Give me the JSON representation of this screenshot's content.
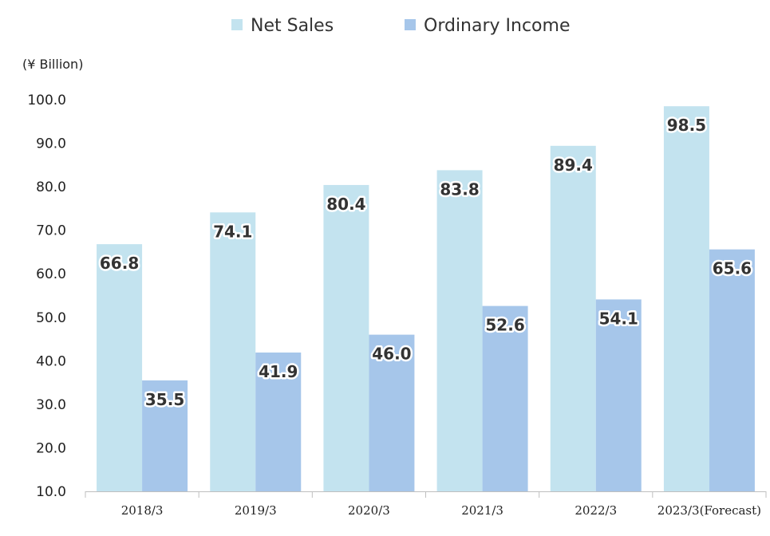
{
  "chart_data": {
    "type": "bar",
    "title": "",
    "unit_label": "(¥ Billion)",
    "xlabel": "",
    "ylabel": "",
    "categories": [
      "2018/3",
      "2019/3",
      "2020/3",
      "2021/3",
      "2022/3",
      "2023/3(Forecast)"
    ],
    "series": [
      {
        "name": "Net Sales",
        "color": "#c3e3ef",
        "values": [
          66.8,
          74.1,
          80.4,
          83.8,
          89.4,
          98.5
        ]
      },
      {
        "name": "Ordinary Income",
        "color": "#a6c6ea",
        "values": [
          35.5,
          41.9,
          46.0,
          52.6,
          54.1,
          65.6
        ]
      }
    ],
    "ylim": [
      10,
      100
    ],
    "yticks": [
      "10.0",
      "20.0",
      "30.0",
      "40.0",
      "50.0",
      "60.0",
      "70.0",
      "80.0",
      "90.0",
      "100.0"
    ],
    "grid": false,
    "legend_position": "top"
  }
}
